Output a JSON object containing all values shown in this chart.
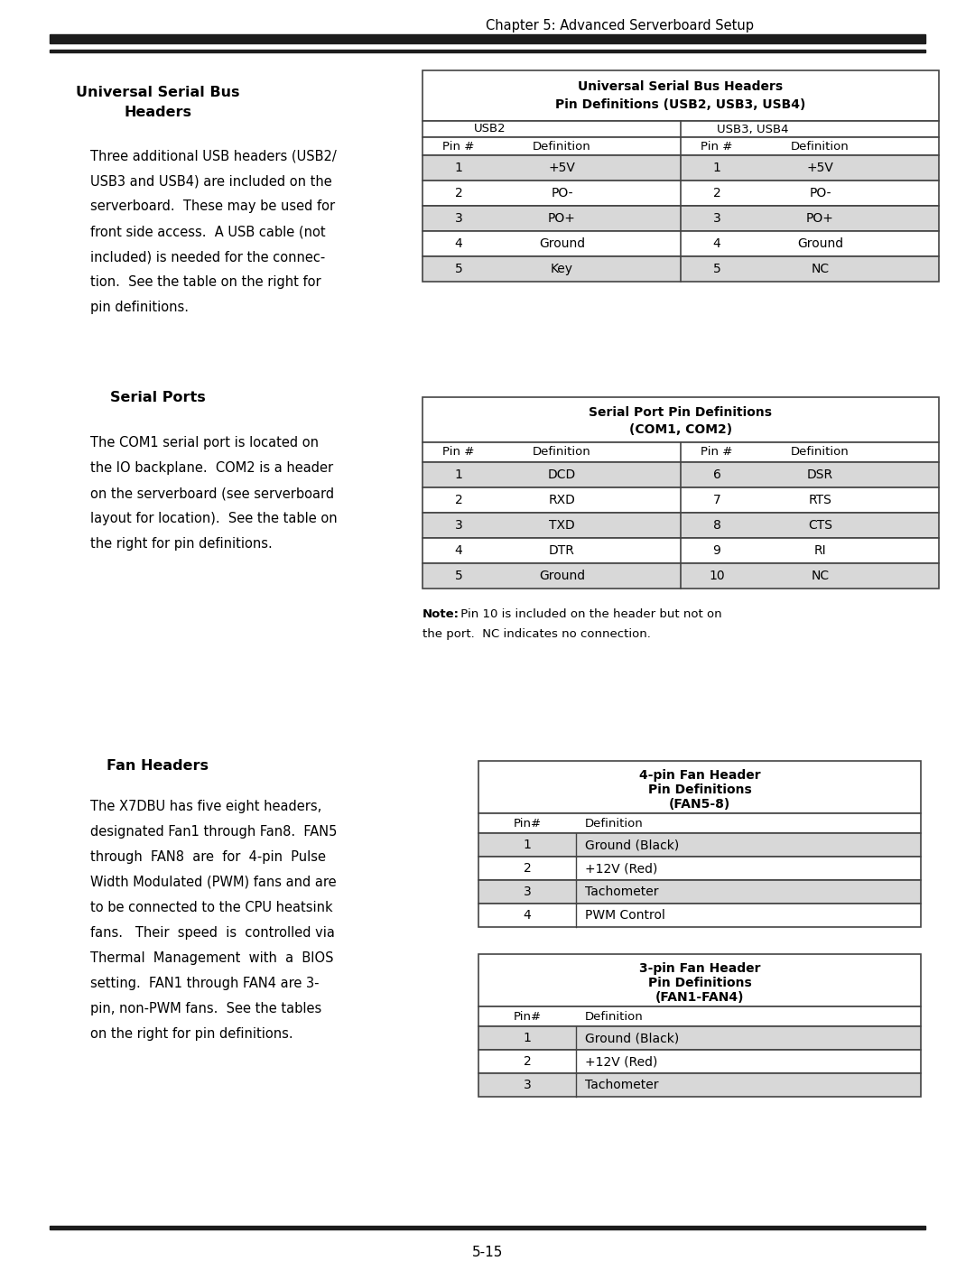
{
  "page_title": "Chapter 5: Advanced Serverboard Setup",
  "page_number": "5-15",
  "bg_color": "#ffffff",
  "text_color": "#000000",
  "table_border_color": "#444444",
  "table_alt_bg": "#d8d8d8",
  "section1_title_line1": "Universal Serial Bus",
  "section1_title_line2": "Headers",
  "section1_body": "Three additional USB headers (USB2/\nUSB3 and USB4) are included on the\nserverboard.  These may be used for\nfront side access.  A USB cable (not\nincluded) is needed for the connec-\ntion.  See the table on the right for\npin definitions.",
  "usb_table_title1": "Universal Serial Bus Headers",
  "usb_table_title2": "Pin Definitions (USB2, USB3, USB4)",
  "usb_rows": [
    [
      "1",
      "+5V",
      "1",
      "+5V"
    ],
    [
      "2",
      "PO-",
      "2",
      "PO-"
    ],
    [
      "3",
      "PO+",
      "3",
      "PO+"
    ],
    [
      "4",
      "Ground",
      "4",
      "Ground"
    ],
    [
      "5",
      "Key",
      "5",
      "NC"
    ]
  ],
  "section2_title": "Serial Ports",
  "section2_body": "The COM1 serial port is located on\nthe IO backplane.  COM2 is a header\non the serverboard (see serverboard\nlayout for location).  See the table on\nthe right for pin definitions.",
  "serial_table_title1": "Serial Port Pin Definitions",
  "serial_table_title2": "(COM1, COM2)",
  "serial_rows": [
    [
      "1",
      "DCD",
      "6",
      "DSR"
    ],
    [
      "2",
      "RXD",
      "7",
      "RTS"
    ],
    [
      "3",
      "TXD",
      "8",
      "CTS"
    ],
    [
      "4",
      "DTR",
      "9",
      "RI"
    ],
    [
      "5",
      "Ground",
      "10",
      "NC"
    ]
  ],
  "serial_note_bold": "Note:",
  "serial_note_rest": " Pin 10 is included on the header but not on",
  "serial_note_line2": "the port.  NC indicates no connection.",
  "section3_title": "Fan Headers",
  "section3_body": "The X7DBU has five eight headers,\ndesignated Fan1 through Fan8.  FAN5\nthrough  FAN8  are  for  4-pin  Pulse\nWidth Modulated (PWM) fans and are\nto be connected to the CPU heatsink\nfans.   Their  speed  is  controlled via\nThermal  Management  with  a  BIOS\nsetting.  FAN1 through FAN4 are 3-\npin, non-PWM fans.  See the tables\non the right for pin definitions.",
  "fan4_title1": "4-pin Fan Header",
  "fan4_title2": "Pin Definitions",
  "fan4_title3": "(FAN5-8)",
  "fan4_rows": [
    [
      "1",
      "Ground (Black)"
    ],
    [
      "2",
      "+12V (Red)"
    ],
    [
      "3",
      "Tachometer"
    ],
    [
      "4",
      "PWM Control"
    ]
  ],
  "fan3_title1": "3-pin Fan Header",
  "fan3_title2": "Pin Definitions",
  "fan3_title3": "(FAN1-FAN4)",
  "fan3_rows": [
    [
      "1",
      "Ground (Black)"
    ],
    [
      "2",
      "+12V (Red)"
    ],
    [
      "3",
      "Tachometer"
    ]
  ]
}
